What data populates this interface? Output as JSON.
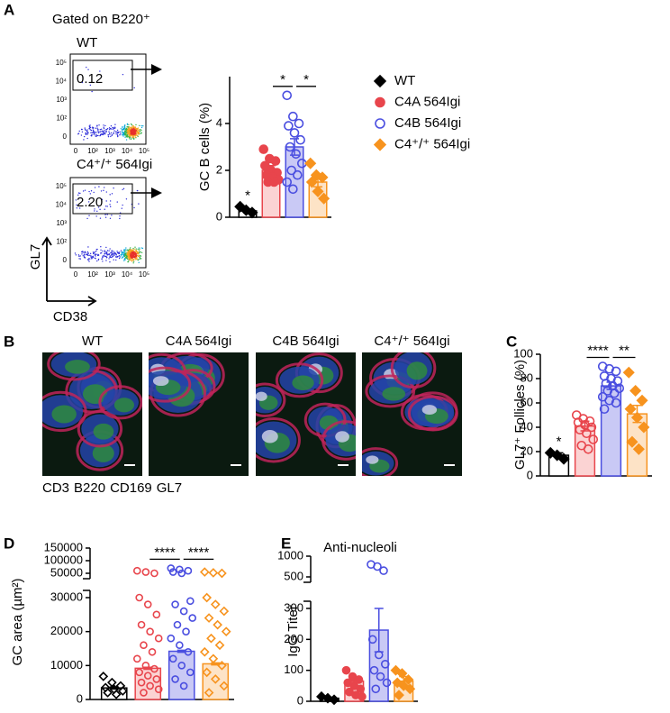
{
  "panels": [
    "A",
    "B",
    "C",
    "D",
    "E"
  ],
  "flow": {
    "title": "Gated on B220⁺",
    "y_axis": "GL7",
    "x_axis": "CD38",
    "y_ticks": [
      "10⁵",
      "10⁴",
      "10³",
      "10²",
      "0"
    ],
    "x_ticks": [
      "0",
      "10²",
      "10³",
      "10⁴",
      "10⁵"
    ],
    "plots": [
      {
        "label": "WT",
        "gate_value": "0.12"
      },
      {
        "label": "C4⁺/⁺ 564Igi",
        "gate_value": "2.20"
      }
    ]
  },
  "micrographs": {
    "labels": [
      "WT",
      "C4A 564Igi",
      "C4B 564Igi",
      "C4⁺/⁺ 564Igi"
    ],
    "stains": [
      {
        "text": "CD3",
        "color": "#2aa84a"
      },
      {
        "text": "B220",
        "color": "#2b6cc4"
      },
      {
        "text": "CD169",
        "color": "#d42a3a"
      },
      {
        "text": "GL7",
        "color": "#222222"
      }
    ]
  },
  "chart_data": [
    {
      "type": "bar",
      "y_label": "GC B cells (%)",
      "ylim": [
        0,
        6
      ],
      "yticks": [
        0,
        2,
        4
      ],
      "legend": true,
      "series": [
        {
          "name": "WT",
          "color": "#000000",
          "fill": "#ffffff",
          "marker": "diamond",
          "filled": true,
          "values": [
            0.27
          ],
          "errors": [
            0.08
          ],
          "points": [
            0.45,
            0.3,
            0.2
          ]
        },
        {
          "name": "C4A 564Igi",
          "color": "#e8454c",
          "fill": "#fbd3d3",
          "marker": "circle",
          "filled": true,
          "values": [
            2.0
          ],
          "errors": [
            0.2
          ],
          "points": [
            2.9,
            2.5,
            2.4,
            2.2,
            2.0,
            1.9,
            1.8,
            1.7,
            1.6,
            1.5,
            1.5
          ]
        },
        {
          "name": "C4B 564Igi",
          "color": "#4a4ee0",
          "fill": "#c9c9f5",
          "marker": "circle",
          "filled": false,
          "values": [
            3.0
          ],
          "errors": [
            0.35
          ],
          "points": [
            5.2,
            4.3,
            4.0,
            3.9,
            3.6,
            3.3,
            3.0,
            2.7,
            2.3,
            2.0,
            1.8,
            1.5,
            1.2
          ]
        },
        {
          "name": "C4⁺/⁺ 564Igi",
          "color": "#f7931e",
          "fill": "#fde3c6",
          "marker": "diamond",
          "filled": true,
          "values": [
            1.5
          ],
          "errors": [
            0.2
          ],
          "points": [
            2.3,
            1.8,
            1.7,
            1.5,
            1.1,
            0.8
          ]
        }
      ],
      "annotations": [
        {
          "text": "*",
          "between": [
            0
          ]
        },
        {
          "text": "*",
          "between": [
            1,
            2
          ]
        },
        {
          "text": "*",
          "between": [
            2,
            3
          ]
        }
      ]
    },
    {
      "type": "bar",
      "y_label": "GL7⁺ Follicles (%)",
      "ylim": [
        0,
        100
      ],
      "yticks": [
        0,
        20,
        40,
        60,
        80,
        100
      ],
      "series": [
        {
          "color": "#000000",
          "fill": "#ffffff",
          "marker": "diamond",
          "filled": true,
          "values": [
            17
          ],
          "errors": [
            2
          ],
          "points": [
            19,
            17,
            14
          ]
        },
        {
          "color": "#e8454c",
          "fill": "#fbd3d3",
          "marker": "circle",
          "filled": false,
          "values": [
            41
          ],
          "errors": [
            4
          ],
          "points": [
            50,
            47,
            45,
            44,
            42,
            40,
            38,
            35,
            30,
            25,
            22
          ]
        },
        {
          "color": "#4a4ee0",
          "fill": "#c9c9f5",
          "marker": "circle",
          "filled": false,
          "values": [
            74
          ],
          "errors": [
            3
          ],
          "points": [
            90,
            88,
            86,
            82,
            80,
            78,
            76,
            74,
            72,
            70,
            68,
            65,
            62,
            60,
            55
          ]
        },
        {
          "color": "#f7931e",
          "fill": "#fde3c6",
          "marker": "diamond",
          "filled": true,
          "values": [
            51
          ],
          "errors": [
            7
          ],
          "points": [
            85,
            70,
            62,
            55,
            48,
            40,
            28,
            22
          ]
        }
      ],
      "annotations": [
        {
          "text": "*",
          "between": [
            0
          ]
        },
        {
          "text": "****",
          "between": [
            1,
            2
          ]
        },
        {
          "text": "**",
          "between": [
            2,
            3
          ]
        }
      ]
    },
    {
      "type": "bar",
      "y_label": "GC area (µm²)",
      "ylim": [
        0,
        30000
      ],
      "yticks": [
        0,
        10000,
        20000,
        30000
      ],
      "ylim_upper": [
        50000,
        150000
      ],
      "yticks_upper": [
        50000,
        100000,
        150000
      ],
      "series": [
        {
          "color": "#000000",
          "fill": "#ffffff",
          "marker": "diamond",
          "filled": false,
          "values": [
            3400
          ],
          "errors": [
            300
          ],
          "points": [
            6800,
            5000,
            4000,
            3500,
            3000,
            2500,
            2000,
            1500
          ]
        },
        {
          "color": "#e8454c",
          "fill": "#fbd3d3",
          "marker": "circle",
          "filled": false,
          "values": [
            9200
          ],
          "errors": [
            300
          ],
          "points": [
            60000,
            55000,
            50000,
            30000,
            28000,
            25000,
            22000,
            20000,
            18000,
            16000,
            14000,
            12000,
            10000,
            9000,
            8000,
            7000,
            6000,
            5000,
            4000,
            3000,
            2000
          ]
        },
        {
          "color": "#4a4ee0",
          "fill": "#c9c9f5",
          "marker": "circle",
          "filled": false,
          "values": [
            14200
          ],
          "errors": [
            300
          ],
          "points": [
            70000,
            65000,
            60000,
            55000,
            50000,
            29000,
            28000,
            26000,
            24000,
            22000,
            20000,
            18000,
            16000,
            14000,
            12000,
            10000,
            8000,
            6000,
            4000
          ]
        },
        {
          "color": "#f7931e",
          "fill": "#fde3c6",
          "marker": "diamond",
          "filled": false,
          "values": [
            10500
          ],
          "errors": [
            300
          ],
          "points": [
            55000,
            52000,
            50000,
            30000,
            28000,
            26000,
            24000,
            22000,
            20000,
            18000,
            16000,
            14000,
            12000,
            10000,
            8000,
            6000,
            4000,
            2000
          ]
        }
      ],
      "annotations": [
        {
          "text": "****",
          "between": [
            1,
            2
          ]
        },
        {
          "text": "****",
          "between": [
            2,
            3
          ]
        }
      ]
    },
    {
      "type": "bar",
      "title": "Anti-nucleoli",
      "y_label": "IgG Titer",
      "ylim": [
        0,
        300
      ],
      "yticks": [
        0,
        100,
        200,
        300
      ],
      "ylim_upper": [
        500,
        1000
      ],
      "yticks_upper": [
        500,
        1000
      ],
      "series": [
        {
          "color": "#000000",
          "fill": "#ffffff",
          "marker": "diamond",
          "filled": true,
          "values": [
            10
          ],
          "errors": [
            3
          ],
          "points": [
            15,
            10,
            5
          ]
        },
        {
          "color": "#e8454c",
          "fill": "#fbd3d3",
          "marker": "circle",
          "filled": true,
          "values": [
            65
          ],
          "errors": [
            15
          ],
          "points": [
            100,
            80,
            70,
            60,
            50,
            40,
            30,
            20,
            15
          ]
        },
        {
          "color": "#4a4ee0",
          "fill": "#c9c9f5",
          "marker": "circle",
          "filled": false,
          "values": [
            230
          ],
          "errors": [
            70
          ],
          "points": [
            800,
            750,
            650,
            200,
            150,
            120,
            100,
            80,
            60,
            40
          ]
        },
        {
          "color": "#f7931e",
          "fill": "#fde3c6",
          "marker": "diamond",
          "filled": true,
          "values": [
            65
          ],
          "errors": [
            15
          ],
          "points": [
            100,
            90,
            70,
            60,
            50,
            40,
            20
          ]
        }
      ]
    }
  ]
}
